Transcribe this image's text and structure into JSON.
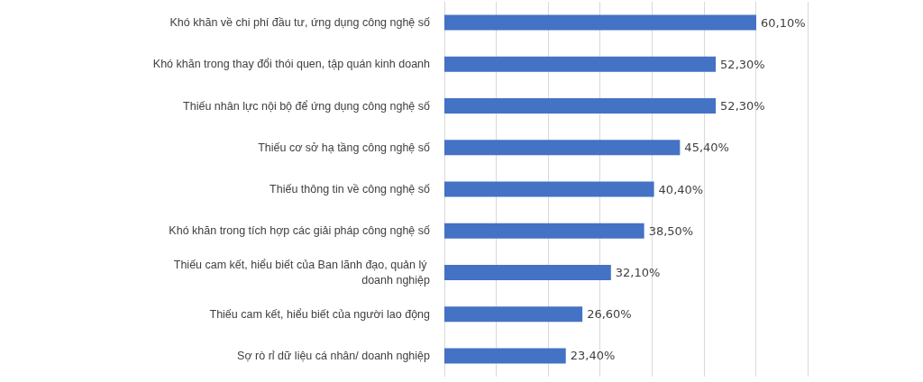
{
  "chart_data": {
    "type": "bar",
    "orientation": "horizontal",
    "categories": [
      "Khó khăn về chi phí đầu tư, ứng dụng công nghệ số",
      "Khó khăn trong thay đổi thói quen, tập quán kinh doanh",
      "Thiếu nhân lực nội bộ để ứng dụng công nghệ số",
      "Thiếu cơ sở hạ tầng công nghệ số",
      "Thiếu thông tin về công nghệ số",
      "Khó khăn trong tích hợp các giải pháp công nghệ số",
      "Thiếu cam kết, hiểu biết của Ban lãnh đạo, quản lý doanh nghiệp",
      "Thiếu cam kết, hiểu biết của người lao động",
      "Sợ rò rỉ dữ liệu cá nhân/ doanh nghiệp"
    ],
    "values": [
      60.1,
      52.3,
      52.3,
      45.4,
      40.4,
      38.5,
      32.1,
      26.6,
      23.4
    ],
    "value_labels": [
      "60,10%",
      "52,30%",
      "52,30%",
      "45,40%",
      "40,40%",
      "38,50%",
      "32,10%",
      "26,60%",
      "23,40%"
    ],
    "color": "#4472c4",
    "xlim": [
      0,
      70
    ],
    "xticks": [
      {
        "value": 0,
        "label": null
      },
      {
        "value": 10,
        "label": null
      },
      {
        "value": 20,
        "label": null
      },
      {
        "value": 30,
        "label": null
      },
      {
        "value": 40,
        "label": null
      },
      {
        "value": 50,
        "label": null
      },
      {
        "value": 60,
        "label": null
      },
      {
        "value": 70,
        "label": null
      }
    ],
    "grid": "x",
    "tick_labels": "y"
  }
}
